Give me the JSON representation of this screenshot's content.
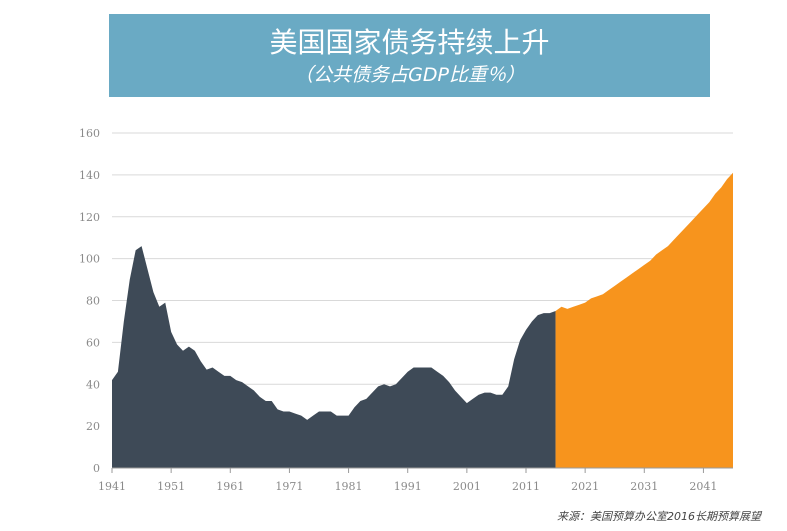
{
  "banner": {
    "title": "美国国家债务持续上升",
    "subtitle": "（公共债务占GDP比重％）"
  },
  "source_note": "来源：美国预算办公室2016长期预算展望",
  "colors": {
    "banner": "#6aaac4",
    "historical": "#3e4a57",
    "projection": "#f7941d"
  },
  "chart_data": {
    "type": "area",
    "title": "",
    "xlabel": "",
    "ylabel": "",
    "xlim": [
      1941,
      2046
    ],
    "ylim": [
      0,
      160
    ],
    "x_ticks": [
      "1941",
      "1951",
      "1961",
      "1971",
      "1981",
      "1991",
      "2001",
      "2011",
      "2021",
      "2031",
      "2041"
    ],
    "y_ticks": [
      "0",
      "20",
      "40",
      "60",
      "80",
      "100",
      "120",
      "140",
      "160"
    ],
    "grid": true,
    "series": [
      {
        "color": "#3e4a57",
        "x": [
          1941,
          1942,
          1943,
          1944,
          1945,
          1946,
          1947,
          1948,
          1949,
          1950,
          1951,
          1952,
          1953,
          1954,
          1955,
          1956,
          1957,
          1958,
          1959,
          1960,
          1961,
          1962,
          1963,
          1964,
          1965,
          1966,
          1967,
          1968,
          1969,
          1970,
          1971,
          1972,
          1973,
          1974,
          1975,
          1976,
          1977,
          1978,
          1979,
          1980,
          1981,
          1982,
          1983,
          1984,
          1985,
          1986,
          1987,
          1988,
          1989,
          1990,
          1991,
          1992,
          1993,
          1994,
          1995,
          1996,
          1997,
          1998,
          1999,
          2000,
          2001,
          2002,
          2003,
          2004,
          2005,
          2006,
          2007,
          2008,
          2009,
          2010,
          2011,
          2012,
          2013,
          2014,
          2015,
          2016
        ],
        "values": [
          42,
          46,
          70,
          90,
          104,
          106,
          95,
          84,
          77,
          79,
          65,
          59,
          56,
          58,
          56,
          51,
          47,
          48,
          46,
          44,
          44,
          42,
          41,
          39,
          37,
          34,
          32,
          32,
          28,
          27,
          27,
          26,
          25,
          23,
          25,
          27,
          27,
          27,
          25,
          25,
          25,
          29,
          32,
          33,
          36,
          39,
          40,
          39,
          40,
          43,
          46,
          48,
          48,
          48,
          48,
          46,
          44,
          41,
          37,
          34,
          31,
          33,
          35,
          36,
          36,
          35,
          35,
          39,
          52,
          61,
          66,
          70,
          73,
          74,
          74,
          75
        ]
      },
      {
        "color": "#f7941d",
        "x": [
          2016,
          2017,
          2018,
          2019,
          2020,
          2021,
          2022,
          2023,
          2024,
          2025,
          2026,
          2027,
          2028,
          2029,
          2030,
          2031,
          2032,
          2033,
          2034,
          2035,
          2036,
          2037,
          2038,
          2039,
          2040,
          2041,
          2042,
          2043,
          2044,
          2045,
          2046
        ],
        "values": [
          75,
          77,
          76,
          77,
          78,
          79,
          81,
          82,
          83,
          85,
          87,
          89,
          91,
          93,
          95,
          97,
          99,
          102,
          104,
          106,
          109,
          112,
          115,
          118,
          121,
          124,
          127,
          131,
          134,
          138,
          141
        ]
      }
    ]
  }
}
